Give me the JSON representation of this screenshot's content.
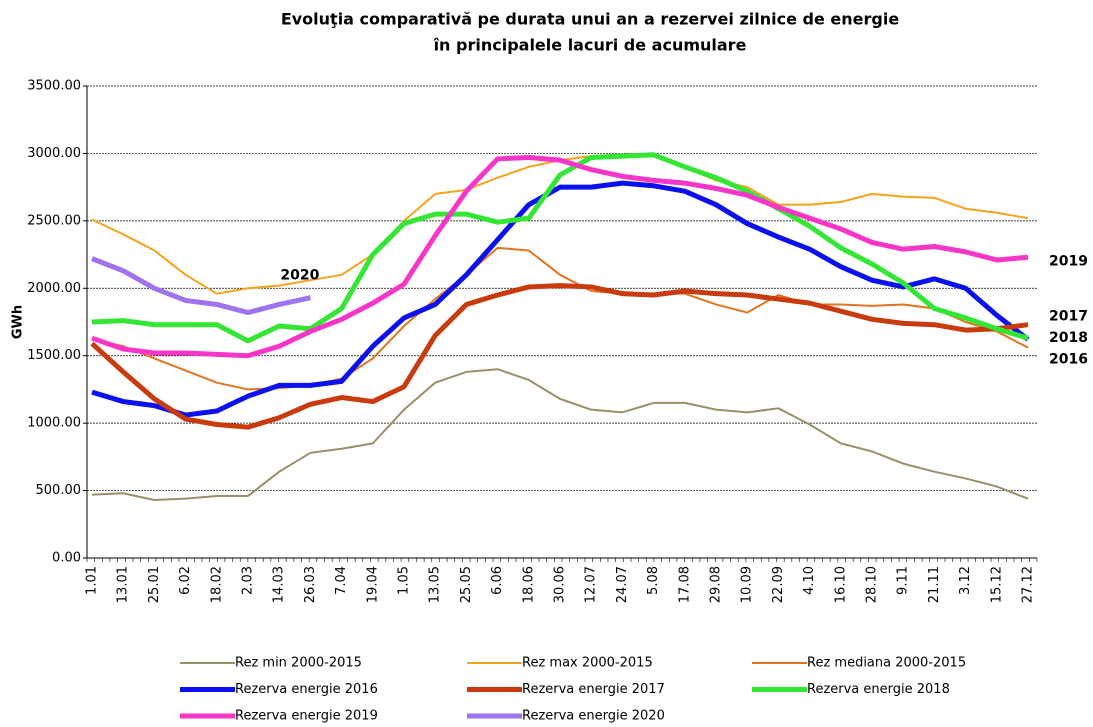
{
  "chart_data": {
    "type": "line",
    "title": [
      "Evoluţia comparativă pe durata unui an a rezervei zilnice de energie",
      "în principalele lacuri de acumulare"
    ],
    "y_label": "GWh",
    "categories": [
      "1.01",
      "13.01",
      "25.01",
      "6.02",
      "18.02",
      "2.03",
      "14.03",
      "26.03",
      "7.04",
      "19.04",
      "1.05",
      "13.05",
      "25.05",
      "6.06",
      "18.06",
      "30.06",
      "12.07",
      "24.07",
      "5.08",
      "17.08",
      "29.08",
      "10.09",
      "22.09",
      "4.10",
      "16.10",
      "28.10",
      "9.11",
      "21.11",
      "3.12",
      "15.12",
      "27.12"
    ],
    "ylim": [
      0,
      3500
    ],
    "yticks": [
      {
        "value": 0,
        "label": "0.00"
      },
      {
        "value": 500,
        "label": "500.00"
      },
      {
        "value": 1000,
        "label": "1000.00"
      },
      {
        "value": 1500,
        "label": "1500.00"
      },
      {
        "value": 2000,
        "label": "2000.00"
      },
      {
        "value": 2500,
        "label": "2500.00"
      },
      {
        "value": 3000,
        "label": "3000.00"
      },
      {
        "value": 3500,
        "label": "3500.00"
      }
    ],
    "grid": true,
    "series": [
      {
        "name": "Rez min 2000-2015",
        "color": "#9a8f69",
        "width": 2,
        "values": [
          470,
          480,
          430,
          440,
          460,
          460,
          640,
          780,
          810,
          850,
          1100,
          1300,
          1380,
          1400,
          1320,
          1180,
          1100,
          1080,
          1150,
          1150,
          1100,
          1080,
          1110,
          990,
          850,
          790,
          700,
          640,
          590,
          530,
          440
        ]
      },
      {
        "name": "Rez max 2000-2015",
        "color": "#f5a21c",
        "width": 2,
        "values": [
          2510,
          2400,
          2280,
          2100,
          1960,
          2000,
          2020,
          2060,
          2100,
          2250,
          2500,
          2700,
          2730,
          2820,
          2900,
          2950,
          2980,
          2990,
          3000,
          2900,
          2800,
          2750,
          2620,
          2620,
          2640,
          2700,
          2680,
          2670,
          2590,
          2560,
          2520
        ]
      },
      {
        "name": "Rez mediana 2000-2015",
        "color": "#e2741f",
        "width": 2,
        "values": [
          1620,
          1570,
          1480,
          1390,
          1300,
          1250,
          1260,
          1280,
          1330,
          1480,
          1720,
          1920,
          2100,
          2300,
          2280,
          2100,
          1980,
          1960,
          1960,
          1960,
          1880,
          1820,
          1950,
          1880,
          1880,
          1870,
          1880,
          1850,
          1750,
          1680,
          1560
        ]
      },
      {
        "name": "Rezerva energie 2016",
        "label": "2016",
        "color": "#0a10f0",
        "width": 5,
        "values": [
          1230,
          1160,
          1130,
          1060,
          1090,
          1200,
          1280,
          1280,
          1310,
          1570,
          1780,
          1880,
          2100,
          2360,
          2620,
          2750,
          2750,
          2780,
          2760,
          2720,
          2620,
          2480,
          2380,
          2290,
          2160,
          2060,
          2010,
          2070,
          2000,
          1800,
          1620
        ]
      },
      {
        "name": "Rezerva energie 2017",
        "label": "2017",
        "color": "#c93a0c",
        "width": 5,
        "values": [
          1590,
          1380,
          1180,
          1030,
          990,
          970,
          1040,
          1140,
          1190,
          1160,
          1270,
          1650,
          1880,
          1950,
          2010,
          2020,
          2010,
          1960,
          1950,
          1980,
          1960,
          1950,
          1920,
          1890,
          1830,
          1770,
          1740,
          1730,
          1690,
          1700,
          1730
        ]
      },
      {
        "name": "Rezerva energie 2018",
        "label": "2018",
        "color": "#33e633",
        "width": 5,
        "values": [
          1750,
          1760,
          1730,
          1730,
          1730,
          1610,
          1720,
          1700,
          1850,
          2250,
          2480,
          2550,
          2550,
          2490,
          2520,
          2840,
          2970,
          2980,
          2990,
          2900,
          2820,
          2720,
          2590,
          2460,
          2300,
          2180,
          2040,
          1850,
          1780,
          1700,
          1630
        ]
      },
      {
        "name": "Rezerva energie 2019",
        "label": "2019",
        "color": "#f736c8",
        "width": 5,
        "values": [
          1630,
          1550,
          1520,
          1520,
          1510,
          1500,
          1570,
          1680,
          1770,
          1890,
          2030,
          2390,
          2720,
          2960,
          2970,
          2950,
          2880,
          2830,
          2800,
          2780,
          2740,
          2690,
          2600,
          2520,
          2440,
          2340,
          2290,
          2310,
          2270,
          2210,
          2230
        ]
      },
      {
        "name": "Rezerva energie 2020",
        "label": "2020",
        "color": "#9f72f0",
        "width": 5,
        "values": [
          2220,
          2130,
          2000,
          1910,
          1880,
          1820,
          1880,
          1930,
          null,
          null,
          null,
          null,
          null,
          null,
          null,
          null,
          null,
          null,
          null,
          null,
          null,
          null,
          null,
          null,
          null,
          null,
          null,
          null,
          null,
          null,
          null
        ]
      }
    ]
  }
}
